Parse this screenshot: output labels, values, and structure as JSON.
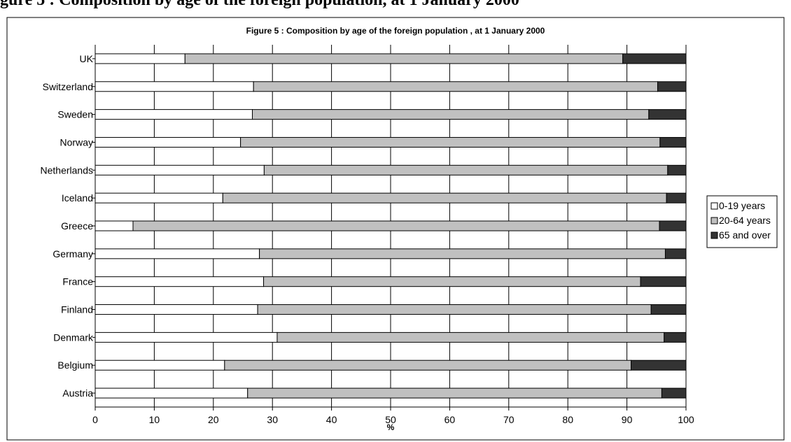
{
  "page_heading": "gure 5 : Composition by age of the foreign population, at 1 January 2000",
  "chart_data": {
    "type": "bar",
    "orientation": "horizontal",
    "stacked": true,
    "title": "Figure 5 : Composition by age of the foreign  population , at 1 January 2000",
    "xlabel": "%",
    "ylabel": "",
    "xlim": [
      0,
      100
    ],
    "x_ticks": [
      "0",
      "10",
      "20",
      "30",
      "40",
      "50",
      "60",
      "70",
      "80",
      "90",
      "100"
    ],
    "grid": "vertical",
    "legend_position": "right",
    "categories": [
      "UK",
      "Switzerland",
      "Sweden",
      "Norway",
      "Netherlands",
      "Iceland",
      "Greece",
      "Germany",
      "France",
      "Finland",
      "Denmark",
      "Belgium",
      "Austria"
    ],
    "series": [
      {
        "name": "0-19 years",
        "color": "#ffffff",
        "values": [
          15.2,
          26.8,
          26.6,
          24.6,
          28.6,
          21.6,
          6.4,
          27.8,
          28.5,
          27.5,
          30.8,
          21.9,
          25.8
        ]
      },
      {
        "name": "20-64 years",
        "color": "#c0c0c0",
        "values": [
          74.1,
          68.4,
          67.1,
          71.0,
          68.3,
          75.1,
          89.1,
          68.7,
          63.8,
          66.6,
          65.5,
          68.8,
          70.1
        ]
      },
      {
        "name": "65 and over",
        "color": "#333333",
        "values": [
          10.7,
          4.8,
          6.3,
          4.4,
          3.1,
          3.3,
          4.5,
          3.5,
          7.7,
          5.9,
          3.7,
          9.3,
          4.1
        ]
      }
    ]
  }
}
